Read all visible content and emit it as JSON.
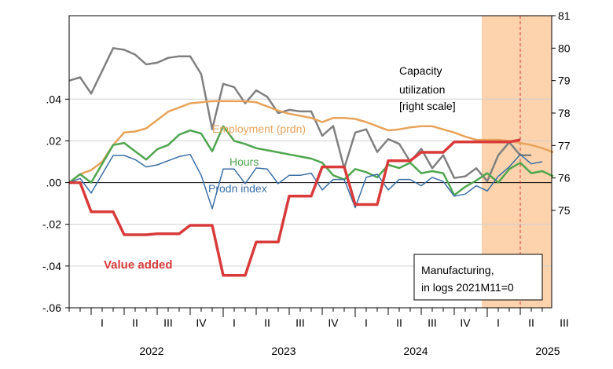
{
  "colors": {
    "capacity": "#808080",
    "employment": "#e8a35a",
    "hours": "#4fa64f",
    "prodn": "#3a6ea5",
    "value_added": "#d93b3b",
    "shade": "#fcd3ad",
    "marker": "#d93b3b"
  },
  "chart_data": {
    "type": "line",
    "grid": true,
    "legend": "none",
    "start_month": "2021-11",
    "y_left": {
      "range": [
        -0.06,
        0.08
      ],
      "ticks": [
        ".04",
        ".02",
        ".00",
        "-.02",
        "-.04",
        "-.06"
      ]
    },
    "y_right": {
      "range": [
        72,
        81
      ],
      "ticks": [
        "81",
        "80",
        "79",
        "78",
        "77",
        "76",
        "75"
      ]
    },
    "x_quarter_labels": [
      "I",
      "II",
      "III",
      "IV",
      "I",
      "II",
      "III",
      "IV",
      "I",
      "II",
      "III",
      "IV",
      "I",
      "II",
      "III"
    ],
    "x_year_labels": [
      "2022",
      "2023",
      "2024",
      "2025"
    ],
    "shaded_range": [
      "2025-01",
      "2025-09"
    ],
    "vline": "2025-04",
    "series": [
      {
        "key": "capacity",
        "name": "Capacity utilization [right scale]",
        "axis": "right",
        "values": [
          79.0,
          79.1,
          78.6,
          79.3,
          80.0,
          79.95,
          79.8,
          79.5,
          79.55,
          79.7,
          79.75,
          79.75,
          79.2,
          77.5,
          78.9,
          78.8,
          78.3,
          78.7,
          78.5,
          78.0,
          78.1,
          78.05,
          78.05,
          77.3,
          77.6,
          76.3,
          77.4,
          77.5,
          76.8,
          77.2,
          77.05,
          76.5,
          76.9,
          76.3,
          76.7,
          76.0,
          76.05,
          76.3,
          75.9,
          76.7,
          77.1,
          76.7,
          76.7
        ],
        "labels": [
          "Capacity",
          "utilization",
          "[right scale]"
        ]
      },
      {
        "key": "employment",
        "name": "Employment (prdn)",
        "axis": "left",
        "values": [
          0.0,
          0.004,
          0.006,
          0.01,
          0.018,
          0.024,
          0.0245,
          0.026,
          0.03,
          0.034,
          0.036,
          0.038,
          0.0385,
          0.039,
          0.039,
          0.039,
          0.039,
          0.0385,
          0.0365,
          0.0345,
          0.033,
          0.032,
          0.031,
          0.029,
          0.031,
          0.031,
          0.0305,
          0.029,
          0.027,
          0.025,
          0.0255,
          0.0265,
          0.027,
          0.027,
          0.0255,
          0.024,
          0.022,
          0.0205,
          0.0205,
          0.0205,
          0.02,
          0.019,
          0.018,
          0.0165,
          0.0145
        ],
        "labels": [
          "Employment (prdn)"
        ]
      },
      {
        "key": "hours",
        "name": "Hours",
        "axis": "left",
        "values": [
          0.0,
          0.004,
          0.0,
          0.009,
          0.018,
          0.019,
          0.015,
          0.011,
          0.016,
          0.018,
          0.023,
          0.025,
          0.0235,
          0.015,
          0.027,
          0.02,
          0.0185,
          0.0165,
          0.0155,
          0.0145,
          0.0135,
          0.0125,
          0.0115,
          0.0095,
          0.0035,
          0.0015,
          0.0065,
          0.005,
          0.0025,
          0.0085,
          0.007,
          0.0095,
          0.0045,
          0.0055,
          0.0045,
          -0.006,
          -0.002,
          0.001,
          0.0045,
          0.0,
          0.0065,
          0.0095,
          0.0045,
          0.0055,
          0.003
        ],
        "labels": [
          "Hours"
        ]
      },
      {
        "key": "prodn",
        "name": "Prodn index",
        "axis": "left",
        "values": [
          0.0,
          0.002,
          -0.005,
          0.004,
          0.013,
          0.013,
          0.011,
          0.0075,
          0.0085,
          0.0105,
          0.0125,
          0.0135,
          0.0035,
          -0.0125,
          0.0065,
          0.0065,
          -0.0005,
          0.007,
          0.0065,
          -0.0005,
          0.0035,
          0.0035,
          0.0045,
          -0.0035,
          0.0015,
          0.0015,
          -0.012,
          0.0025,
          0.004,
          -0.0035,
          0.0015,
          0.0015,
          -0.0015,
          0.0025,
          0.0005,
          -0.0065,
          -0.0055,
          -0.0015,
          -0.004,
          0.003,
          0.0075,
          0.0135,
          0.009,
          0.01
        ],
        "labels": [
          "Prodn index"
        ]
      },
      {
        "key": "value_added",
        "name": "Value added",
        "axis": "left",
        "values": [
          0.0,
          0.0,
          -0.014,
          -0.014,
          -0.014,
          -0.025,
          -0.025,
          -0.025,
          -0.0245,
          -0.0245,
          -0.0245,
          -0.0205,
          -0.0205,
          -0.0205,
          -0.0445,
          -0.0445,
          -0.0445,
          -0.0285,
          -0.0285,
          -0.0285,
          -0.0065,
          -0.0065,
          -0.0065,
          0.0075,
          0.0075,
          0.0075,
          -0.0105,
          -0.0105,
          -0.0105,
          0.0105,
          0.0105,
          0.0105,
          0.0145,
          0.0145,
          0.0145,
          0.0195,
          0.0195,
          0.0195,
          0.0195,
          0.0195,
          0.0195,
          0.0205
        ],
        "labels": [
          "Value added"
        ]
      }
    ],
    "note_box": [
      "Manufacturing,",
      "in logs 2021M11=0"
    ]
  }
}
